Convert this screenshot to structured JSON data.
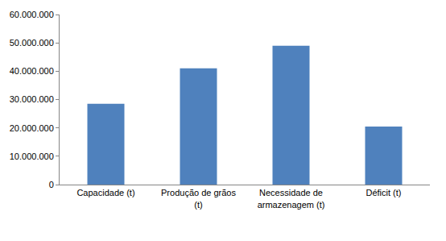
{
  "chart_data": {
    "type": "bar",
    "categories": [
      "Capacidade (t)",
      "Produção de grãos (t)",
      "Necessidade de armazenagem (t)",
      "Déficit (t)"
    ],
    "values": [
      28500000,
      41000000,
      49000000,
      20500000
    ],
    "color": "#4f81bd",
    "ylim": [
      0,
      60000000
    ],
    "yticks": [
      0,
      {
        "value": 10000000,
        "label": "10.000.000"
      },
      {
        "value": 20000000,
        "label": "20.000.000"
      },
      {
        "value": 30000000,
        "label": "30.000.000"
      },
      {
        "value": 40000000,
        "label": "40.000.000"
      },
      {
        "value": 50000000,
        "label": "50.000.000"
      },
      {
        "value": 60000000,
        "label": "60.000.000"
      }
    ],
    "grid": false
  }
}
